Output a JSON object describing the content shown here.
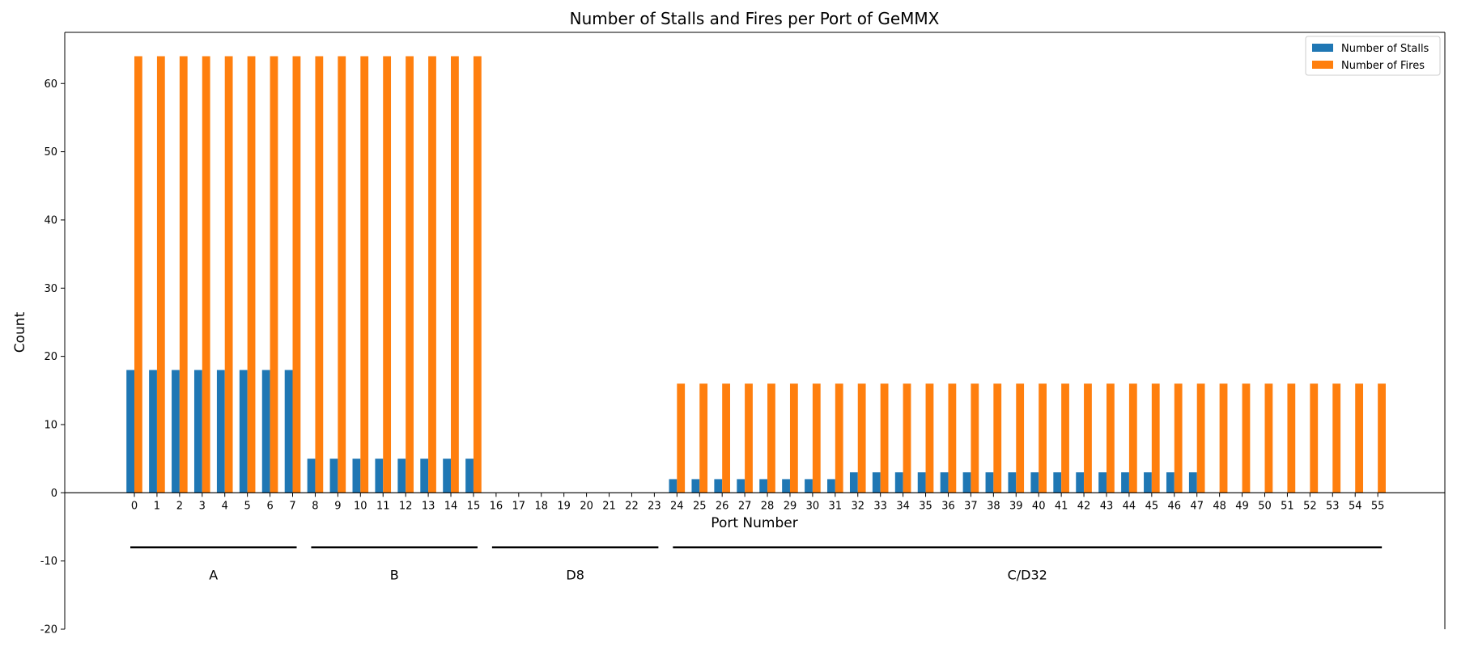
{
  "chart_data": {
    "type": "bar",
    "title": "Number of Stalls and Fires per Port of GeMMX",
    "xlabel": "Port Number",
    "ylabel": "Count",
    "ylim": [
      -20,
      67.5
    ],
    "yticks": [
      -20,
      -10,
      0,
      10,
      20,
      30,
      40,
      50,
      60
    ],
    "categories": [
      "0",
      "1",
      "2",
      "3",
      "4",
      "5",
      "6",
      "7",
      "8",
      "9",
      "10",
      "11",
      "12",
      "13",
      "14",
      "15",
      "16",
      "17",
      "18",
      "19",
      "20",
      "21",
      "22",
      "23",
      "24",
      "25",
      "26",
      "27",
      "28",
      "29",
      "30",
      "31",
      "32",
      "33",
      "34",
      "35",
      "36",
      "37",
      "38",
      "39",
      "40",
      "41",
      "42",
      "43",
      "44",
      "45",
      "46",
      "47",
      "48",
      "49",
      "50",
      "51",
      "52",
      "53",
      "54",
      "55"
    ],
    "series": [
      {
        "name": "Number of Stalls",
        "color": "#1f77b4",
        "values": [
          18,
          18,
          18,
          18,
          18,
          18,
          18,
          18,
          5,
          5,
          5,
          5,
          5,
          5,
          5,
          5,
          0,
          0,
          0,
          0,
          0,
          0,
          0,
          0,
          2,
          2,
          2,
          2,
          2,
          2,
          2,
          2,
          3,
          3,
          3,
          3,
          3,
          3,
          3,
          3,
          3,
          3,
          3,
          3,
          3,
          3,
          3,
          3,
          0,
          0,
          0,
          0,
          0,
          0,
          0,
          0
        ]
      },
      {
        "name": "Number of Fires",
        "color": "#ff7f0e",
        "values": [
          64,
          64,
          64,
          64,
          64,
          64,
          64,
          64,
          64,
          64,
          64,
          64,
          64,
          64,
          64,
          64,
          0,
          0,
          0,
          0,
          0,
          0,
          0,
          0,
          16,
          16,
          16,
          16,
          16,
          16,
          16,
          16,
          16,
          16,
          16,
          16,
          16,
          16,
          16,
          16,
          16,
          16,
          16,
          16,
          16,
          16,
          16,
          16,
          16,
          16,
          16,
          16,
          16,
          16,
          16,
          16
        ]
      }
    ],
    "groups": [
      {
        "label": "A",
        "from": 0,
        "to": 7
      },
      {
        "label": "B",
        "from": 8,
        "to": 15
      },
      {
        "label": "D8",
        "from": 16,
        "to": 23
      },
      {
        "label": "C/D32",
        "from": 24,
        "to": 55
      }
    ],
    "group_bracket_y": -8,
    "group_label_y": -12,
    "legend_position": "top-right",
    "grid": false
  }
}
